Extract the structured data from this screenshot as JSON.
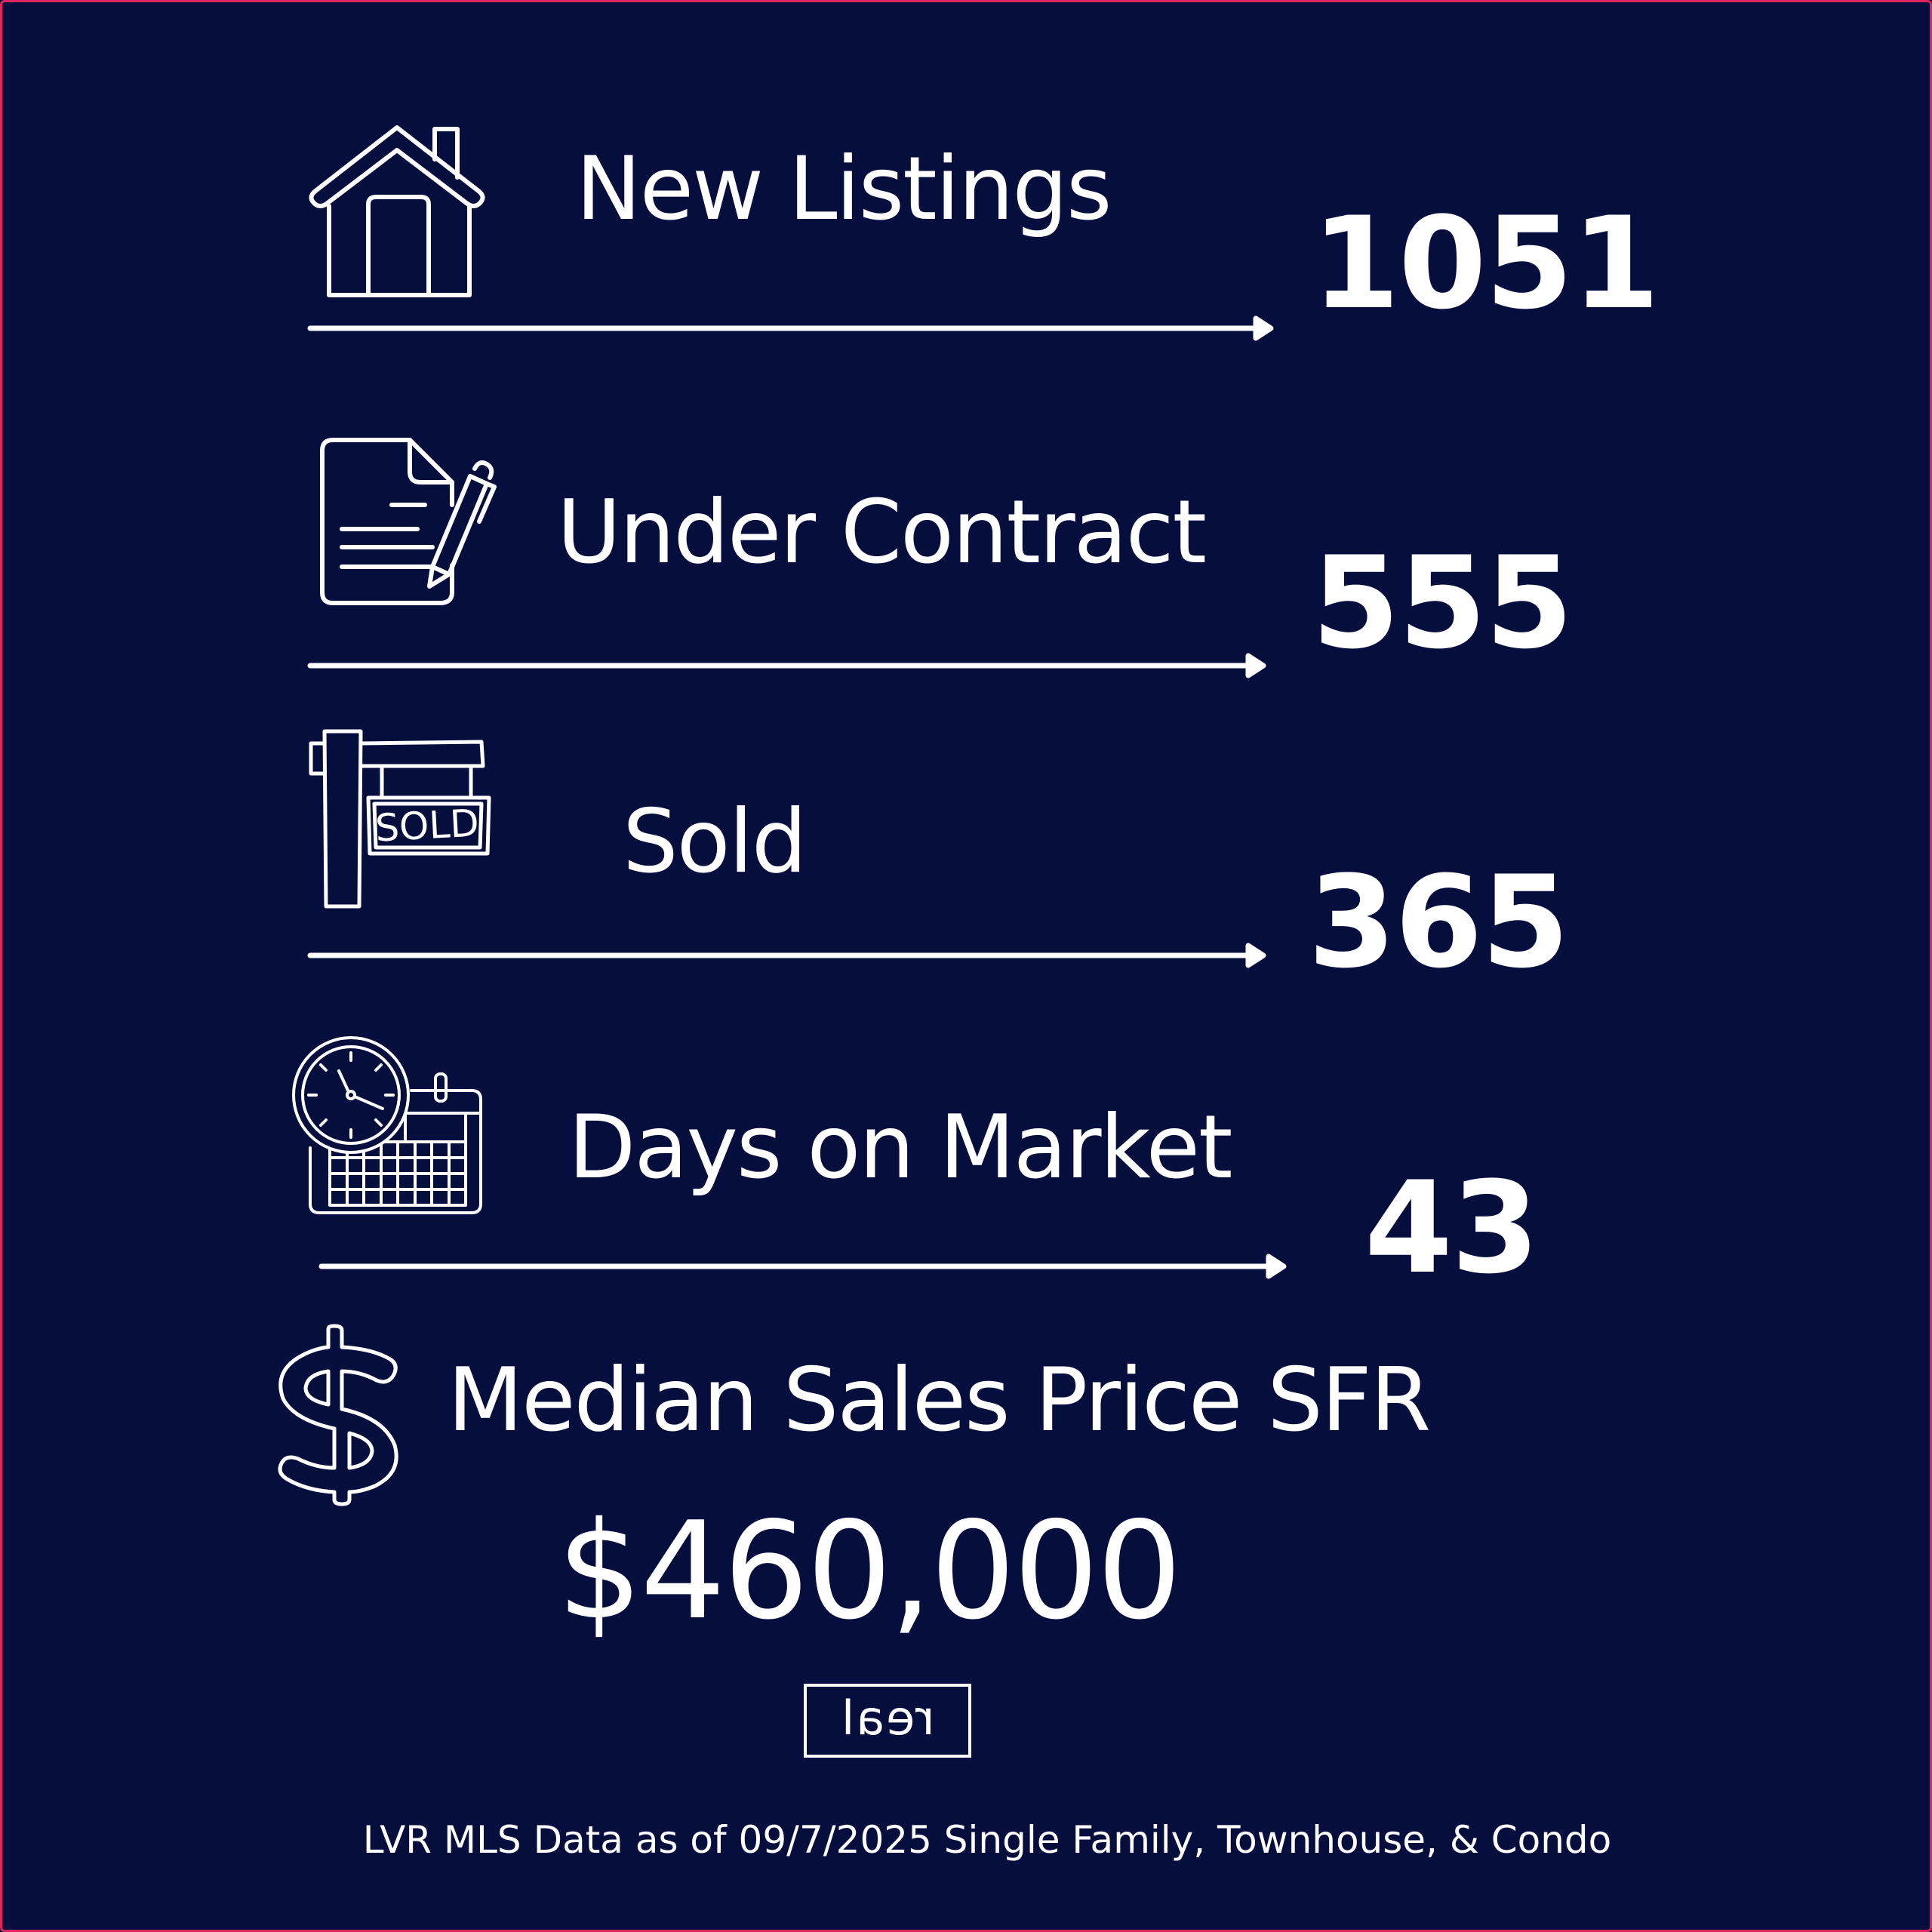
{
  "stats": [
    {
      "icon": "house-icon",
      "label": "New Listings",
      "value": "1051"
    },
    {
      "icon": "contract-document-icon",
      "label": "Under Contract",
      "value": "555"
    },
    {
      "icon": "sold-sign-icon",
      "label": "Sold",
      "value": "365"
    },
    {
      "icon": "clock-calendar-icon",
      "label": "Days on Market",
      "value": "43"
    }
  ],
  "median": {
    "icon": "dollar-sign-icon",
    "label": "Median Sales Price SFR",
    "value": "$460,000"
  },
  "logo": {
    "text": "real"
  },
  "footer": {
    "text": "LVR MLS Data as of 09/7/2025 Single Family, Townhouse, & Condo"
  },
  "colors": {
    "background": "#060e3e",
    "foreground": "#ffffff",
    "border": "#e0245e"
  }
}
